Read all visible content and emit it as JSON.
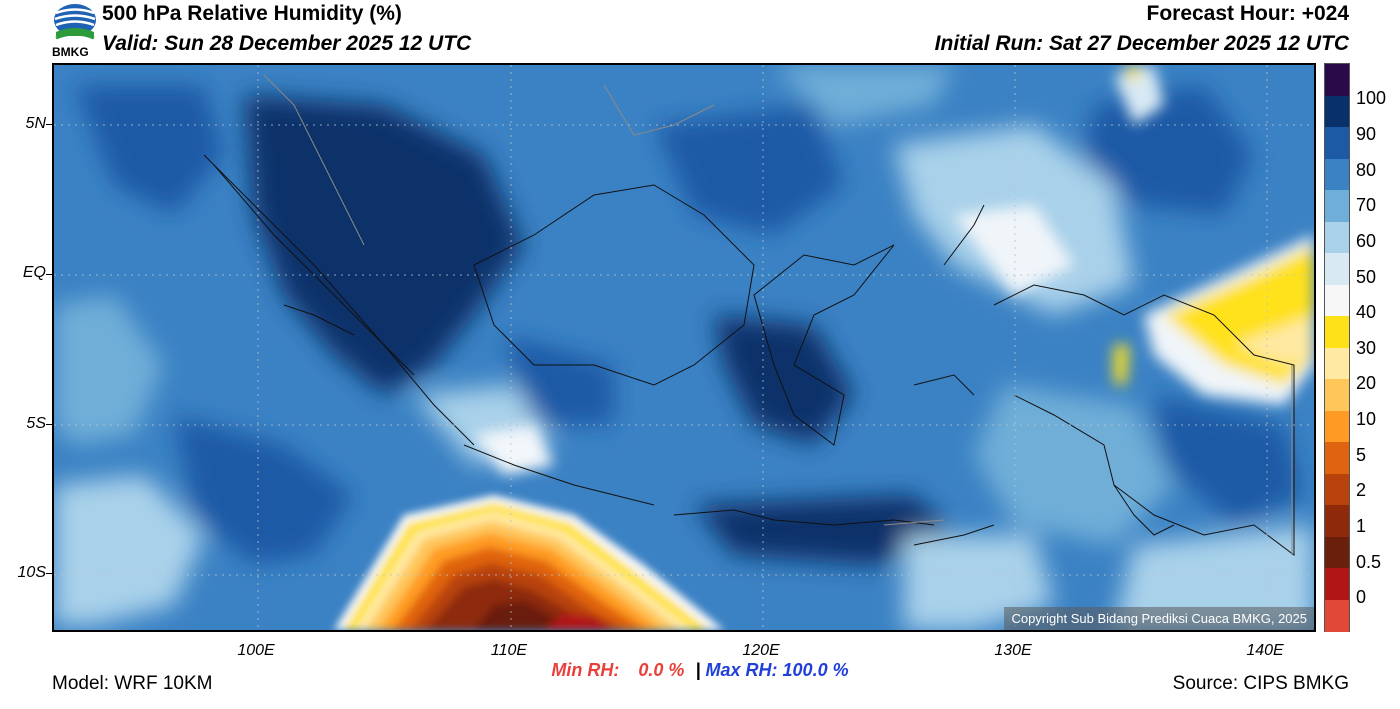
{
  "header": {
    "title": "500 hPa Relative Humidity (%)",
    "valid": "Valid: Sun 28 December 2025 12 UTC",
    "forecast_hour": "Forecast Hour: +024",
    "initial_run": "Initial Run: Sat 27 December 2025 12 UTC",
    "logo_text": "BMKG"
  },
  "axes": {
    "lat_labels": [
      "5N",
      "EQ",
      "5S",
      "10S"
    ],
    "lon_labels": [
      "100E",
      "110E",
      "120E",
      "130E",
      "140E"
    ]
  },
  "colorbar": {
    "labels": [
      "100",
      "90",
      "80",
      "70",
      "60",
      "50",
      "40",
      "30",
      "20",
      "10",
      "5",
      "2",
      "1",
      "0.5",
      "0"
    ],
    "colors": [
      "#2b0a4a",
      "#08306b",
      "#1d5aa6",
      "#3b82c4",
      "#6faed8",
      "#a9d1ea",
      "#d8e9f4",
      "#f7f7f7",
      "#ffe11a",
      "#ffe9a3",
      "#ffc65a",
      "#ff9b24",
      "#e0640f",
      "#b8420a",
      "#8e2a0a",
      "#6a1e0c",
      "#b01616",
      "#e24838"
    ]
  },
  "stats": {
    "min_label": "Min RH:",
    "min_value": "0.0 %",
    "separator": "|",
    "max_label": "Max RH:",
    "max_value": "100.0 %"
  },
  "footer": {
    "model": "Model: WRF 10KM",
    "source": "Source: CIPS BMKG",
    "copyright": "Copyright Sub Bidang Prediksi Cuaca BMKG, 2025"
  },
  "colors": {
    "min_red": "#e8403a",
    "max_blue": "#2040d8"
  }
}
